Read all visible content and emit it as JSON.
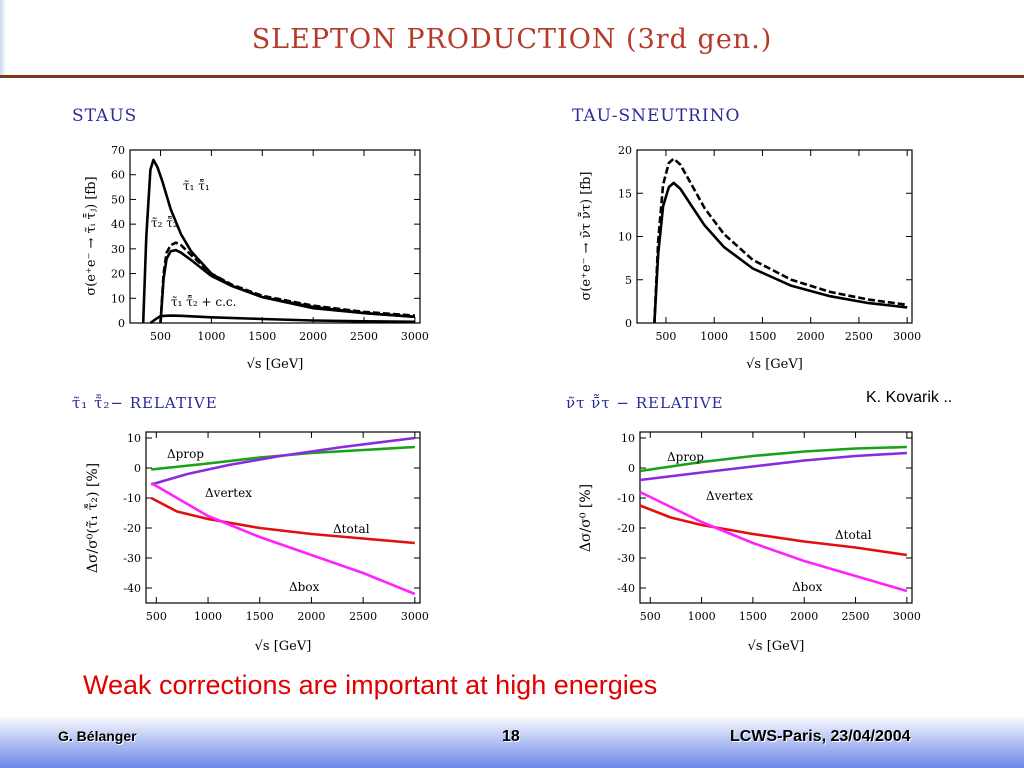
{
  "slide": {
    "title": "SLEPTON PRODUCTION (3rd gen.)",
    "panel_titles": [
      "STAUS",
      "TAU-SNEUTRINO",
      "τ̃₁ τ̃̄₂− RELATIVE",
      "ν̃τ ν̄̃τ − RELATIVE"
    ],
    "credit": "K. Kovarik ..",
    "conclusion": "Weak corrections  are important at high energies",
    "footer_left": "G. Bélanger",
    "footer_page": "18",
    "footer_right": "LCWS-Paris, 23/04/2004"
  },
  "chart_data": [
    {
      "type": "line",
      "title": "STAUS",
      "xlabel": "√s [GeV]",
      "ylabel": "σ(e⁺e⁻ → τ̃ᵢ τ̃̄ⱼ) [fb]",
      "xlim": [
        200,
        3050
      ],
      "ylim": [
        0,
        70
      ],
      "xticks": [
        500,
        1000,
        1500,
        2000,
        2500,
        3000
      ],
      "yticks": [
        0,
        10,
        20,
        30,
        40,
        50,
        60,
        70
      ],
      "grid": false,
      "series": [
        {
          "name": "τ̃₁ τ̃̄₁",
          "style": "solid",
          "color": "#000000",
          "x": [
            330,
            360,
            400,
            430,
            470,
            520,
            600,
            700,
            800,
            1000,
            1200,
            1500,
            2000,
            2500,
            3000
          ],
          "y": [
            0,
            35,
            62,
            66,
            63,
            57,
            46,
            36,
            29,
            20,
            15,
            10.5,
            6,
            4,
            2.5
          ]
        },
        {
          "name": "τ̃₂ τ̃̄₂",
          "style": "solid",
          "color": "#000000",
          "x": [
            500,
            530,
            560,
            600,
            650,
            700,
            800,
            1000,
            1200,
            1500,
            2000,
            2500,
            3000
          ],
          "y": [
            0,
            18,
            26,
            29,
            29.5,
            28.5,
            25.5,
            19,
            15,
            10.5,
            6.5,
            4,
            2.5
          ]
        },
        {
          "name": "τ̃₂ τ̃̄₂ (dashed)",
          "style": "dashed",
          "color": "#000000",
          "x": [
            500,
            530,
            560,
            600,
            650,
            700,
            800,
            1000,
            1200,
            1500,
            2000,
            2500,
            3000
          ],
          "y": [
            0,
            20,
            28.5,
            31.5,
            32.5,
            31.5,
            27.5,
            20,
            15.5,
            11,
            7,
            4.5,
            3
          ]
        },
        {
          "name": "τ̃₁ τ̃̄₂ + c.c.",
          "style": "solid",
          "color": "#000000",
          "x": [
            400,
            450,
            500,
            600,
            700,
            1000,
            1500,
            2000,
            2500,
            3000
          ],
          "y": [
            0,
            1.5,
            2.8,
            3.0,
            2.9,
            2.3,
            1.6,
            1.0,
            0.7,
            0.5
          ]
        }
      ],
      "annotations": [
        "τ̃₁ τ̃̄₁",
        "τ̃₂ τ̃̄₂",
        "τ̃₁ τ̃̄₂ + c.c."
      ]
    },
    {
      "type": "line",
      "title": "TAU-SNEUTRINO",
      "xlabel": "√s [GeV]",
      "ylabel": "σ(e⁺e⁻ → ν̃τ ν̄̃τ) [fb]",
      "xlim": [
        200,
        3050
      ],
      "ylim": [
        0,
        20
      ],
      "xticks": [
        500,
        1000,
        1500,
        2000,
        2500,
        3000
      ],
      "yticks": [
        0,
        5,
        10,
        15,
        20
      ],
      "grid": false,
      "series": [
        {
          "style": "dashed",
          "color": "#000000",
          "x": [
            380,
            420,
            470,
            530,
            580,
            650,
            750,
            900,
            1100,
            1400,
            1800,
            2200,
            2600,
            3000
          ],
          "y": [
            0,
            9.5,
            16,
            18.5,
            19,
            18.3,
            16.3,
            13.3,
            10.3,
            7.3,
            5,
            3.6,
            2.7,
            2.1
          ]
        },
        {
          "style": "solid",
          "color": "#000000",
          "x": [
            380,
            420,
            470,
            530,
            580,
            650,
            750,
            900,
            1100,
            1400,
            1800,
            2200,
            2600,
            3000
          ],
          "y": [
            0,
            8,
            13.5,
            15.7,
            16.2,
            15.5,
            13.8,
            11.3,
            8.8,
            6.3,
            4.3,
            3.1,
            2.3,
            1.8
          ]
        }
      ]
    },
    {
      "type": "line",
      "title": "τ̃₁ τ̃̄₂− RELATIVE",
      "xlabel": "√s [GeV]",
      "ylabel": "Δσ/σ⁰(τ̃₁ τ̃̄₂) [%]",
      "xlim": [
        400,
        3050
      ],
      "ylim": [
        -45,
        12
      ],
      "xticks": [
        500,
        1000,
        1500,
        2000,
        2500,
        3000
      ],
      "yticks": [
        -40,
        -30,
        -20,
        -10,
        0,
        10
      ],
      "grid": false,
      "series": [
        {
          "name": "Δprop",
          "color": "#1aa11a",
          "x": [
            450,
            1000,
            1500,
            2000,
            2500,
            3000
          ],
          "y": [
            -0.5,
            1.5,
            3.5,
            5.0,
            6.0,
            7.0
          ]
        },
        {
          "name": "Δvertex",
          "color": "#8a2be2",
          "x": [
            450,
            800,
            1200,
            1700,
            2300,
            3000
          ],
          "y": [
            -5.5,
            -2,
            1,
            4,
            7,
            10
          ]
        },
        {
          "name": "Δtotal",
          "color": "#e01010",
          "x": [
            450,
            700,
            1000,
            1500,
            2000,
            2500,
            3000
          ],
          "y": [
            -10,
            -14.5,
            -17,
            -20,
            -22,
            -23.5,
            -25
          ]
        },
        {
          "name": "Δbox",
          "color": "#ff22ff",
          "x": [
            450,
            700,
            1000,
            1500,
            2000,
            2500,
            3000
          ],
          "y": [
            -5,
            -10,
            -16,
            -23,
            -29,
            -35,
            -42
          ]
        }
      ],
      "annotations": [
        "Δprop",
        "Δvertex",
        "Δtotal",
        "Δbox"
      ]
    },
    {
      "type": "line",
      "title": "ν̃τ ν̄̃τ − RELATIVE",
      "xlabel": "√s [GeV]",
      "ylabel": "Δσ/σ⁰ [%]",
      "xlim": [
        400,
        3050
      ],
      "ylim": [
        -45,
        12
      ],
      "xticks": [
        500,
        1000,
        1500,
        2000,
        2500,
        3000
      ],
      "yticks": [
        -40,
        -30,
        -20,
        -10,
        0,
        10
      ],
      "grid": false,
      "series": [
        {
          "name": "Δprop",
          "color": "#1aa11a",
          "x": [
            400,
            1000,
            1500,
            2000,
            2500,
            3000
          ],
          "y": [
            -1,
            2,
            4,
            5.5,
            6.5,
            7
          ]
        },
        {
          "name": "Δvertex",
          "color": "#8a2be2",
          "x": [
            400,
            1000,
            1500,
            2000,
            2500,
            3000
          ],
          "y": [
            -4,
            -1.5,
            0.5,
            2.5,
            4,
            5
          ]
        },
        {
          "name": "Δtotal",
          "color": "#e01010",
          "x": [
            400,
            700,
            1000,
            1500,
            2000,
            2500,
            3000
          ],
          "y": [
            -12.5,
            -16.5,
            -19,
            -22,
            -24.5,
            -26.5,
            -29
          ]
        },
        {
          "name": "Δbox",
          "color": "#ff22ff",
          "x": [
            400,
            700,
            1000,
            1500,
            2000,
            2500,
            3000
          ],
          "y": [
            -8,
            -13,
            -18,
            -25,
            -31,
            -36,
            -41
          ]
        }
      ],
      "annotations": [
        "Δprop",
        "Δvertex",
        "Δtotal",
        "Δbox"
      ]
    }
  ]
}
